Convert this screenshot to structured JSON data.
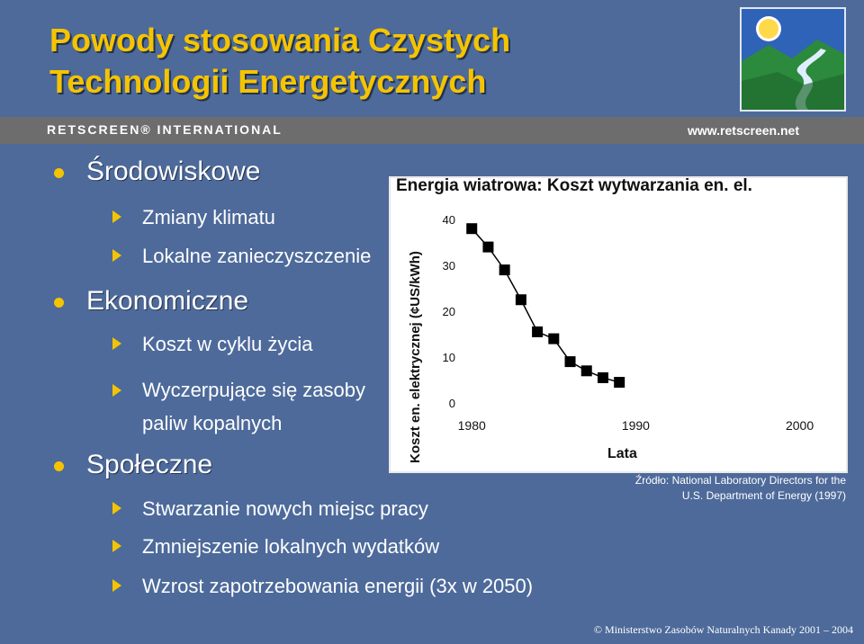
{
  "title": "Powody stosowania Czystych Technologii Energetycznych",
  "brand": {
    "name": "RETSCREEN® INTERNATIONAL",
    "url": "www.retscreen.net"
  },
  "bullets": [
    {
      "label": "Środowiskowe",
      "sub": [
        "Zmiany klimatu",
        "Lokalne zanieczyszczenie"
      ]
    },
    {
      "label": "Ekonomiczne",
      "sub": [
        "Koszt w cyklu życia",
        "Wyczerpujące się zasoby paliw kopalnych"
      ]
    },
    {
      "label": "Społeczne",
      "sub": [
        "Stwarzanie nowych miejsc pracy",
        "Zmniejszenie lokalnych wydatków",
        "Wzrost zapotrzebowania energii (3x w 2050)"
      ]
    }
  ],
  "chart_data": {
    "type": "scatter",
    "title": "Energia wiatrowa: Koszt wytwarzania en. el.",
    "xlabel": "Lata",
    "ylabel": "Koszt en. elektrycznej (¢US/kWh)",
    "x": [
      1980,
      1981,
      1982,
      1983,
      1984,
      1985,
      1986,
      1987,
      1988,
      1989
    ],
    "y": [
      38,
      34,
      29,
      22.5,
      15.5,
      14,
      9,
      7,
      5.5,
      4.5
    ],
    "xlim": [
      1979,
      2002
    ],
    "ylim": [
      0,
      40
    ],
    "yticks": [
      0,
      10,
      20,
      30,
      40
    ],
    "xticks": [
      1980,
      1990,
      2000
    ],
    "grid": false,
    "marker": "square",
    "color": "#000000"
  },
  "source": "Źródło: National Laboratory Directors for the U.S. Department of Energy (1997)",
  "copyright": "© Ministerstwo Zasobów Naturalnych Kanady 2001 – 2004"
}
